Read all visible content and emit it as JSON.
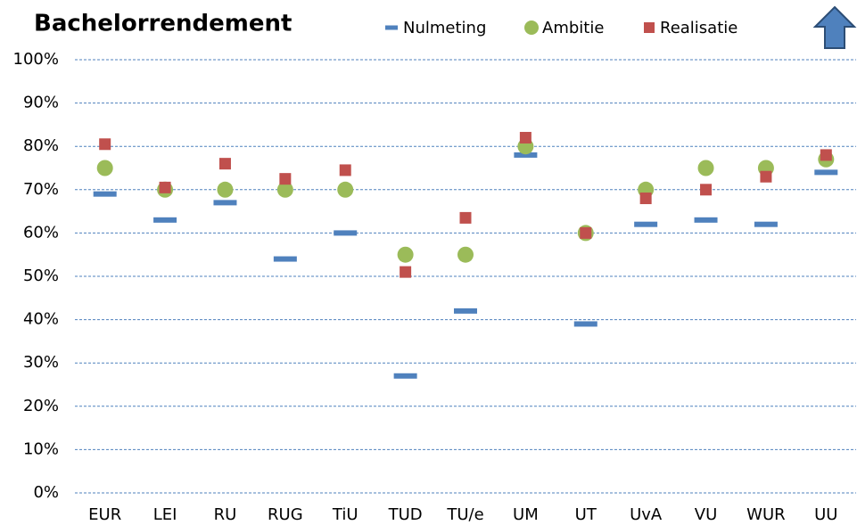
{
  "chart_data": {
    "type": "scatter",
    "title": "Bachelorrendement",
    "categories": [
      "EUR",
      "LEI",
      "RU",
      "RUG",
      "TiU",
      "TUD",
      "TU/e",
      "UM",
      "UT",
      "UvA",
      "VU",
      "WUR",
      "UU"
    ],
    "series": [
      {
        "name": "Nulmeting",
        "color": "#4f81bd",
        "marker": "dash",
        "values": [
          69,
          63,
          67,
          54,
          60,
          27,
          42,
          78,
          39,
          62,
          63,
          62,
          74
        ]
      },
      {
        "name": "Ambitie",
        "color": "#9bbb59",
        "marker": "circle",
        "values": [
          75,
          70,
          70,
          70,
          70,
          55,
          55,
          80,
          60,
          70,
          75,
          75,
          77
        ]
      },
      {
        "name": "Realisatie",
        "color": "#c0504d",
        "marker": "square",
        "values": [
          80.5,
          70.5,
          76,
          72.5,
          74.5,
          51,
          63.5,
          82,
          60,
          68,
          70,
          73,
          78
        ]
      }
    ],
    "ylim": [
      0,
      100
    ],
    "yticks": [
      {
        "value": 0,
        "label": "0%"
      },
      {
        "value": 10,
        "label": "10%"
      },
      {
        "value": 20,
        "label": "20%"
      },
      {
        "value": 30,
        "label": "30%"
      },
      {
        "value": 40,
        "label": "40%"
      },
      {
        "value": 50,
        "label": "50%"
      },
      {
        "value": 60,
        "label": "60%"
      },
      {
        "value": 70,
        "label": "70%"
      },
      {
        "value": 80,
        "label": "80%"
      },
      {
        "value": 90,
        "label": "90%"
      },
      {
        "value": 100,
        "label": "100%"
      }
    ],
    "grid": true,
    "legend": "top"
  }
}
